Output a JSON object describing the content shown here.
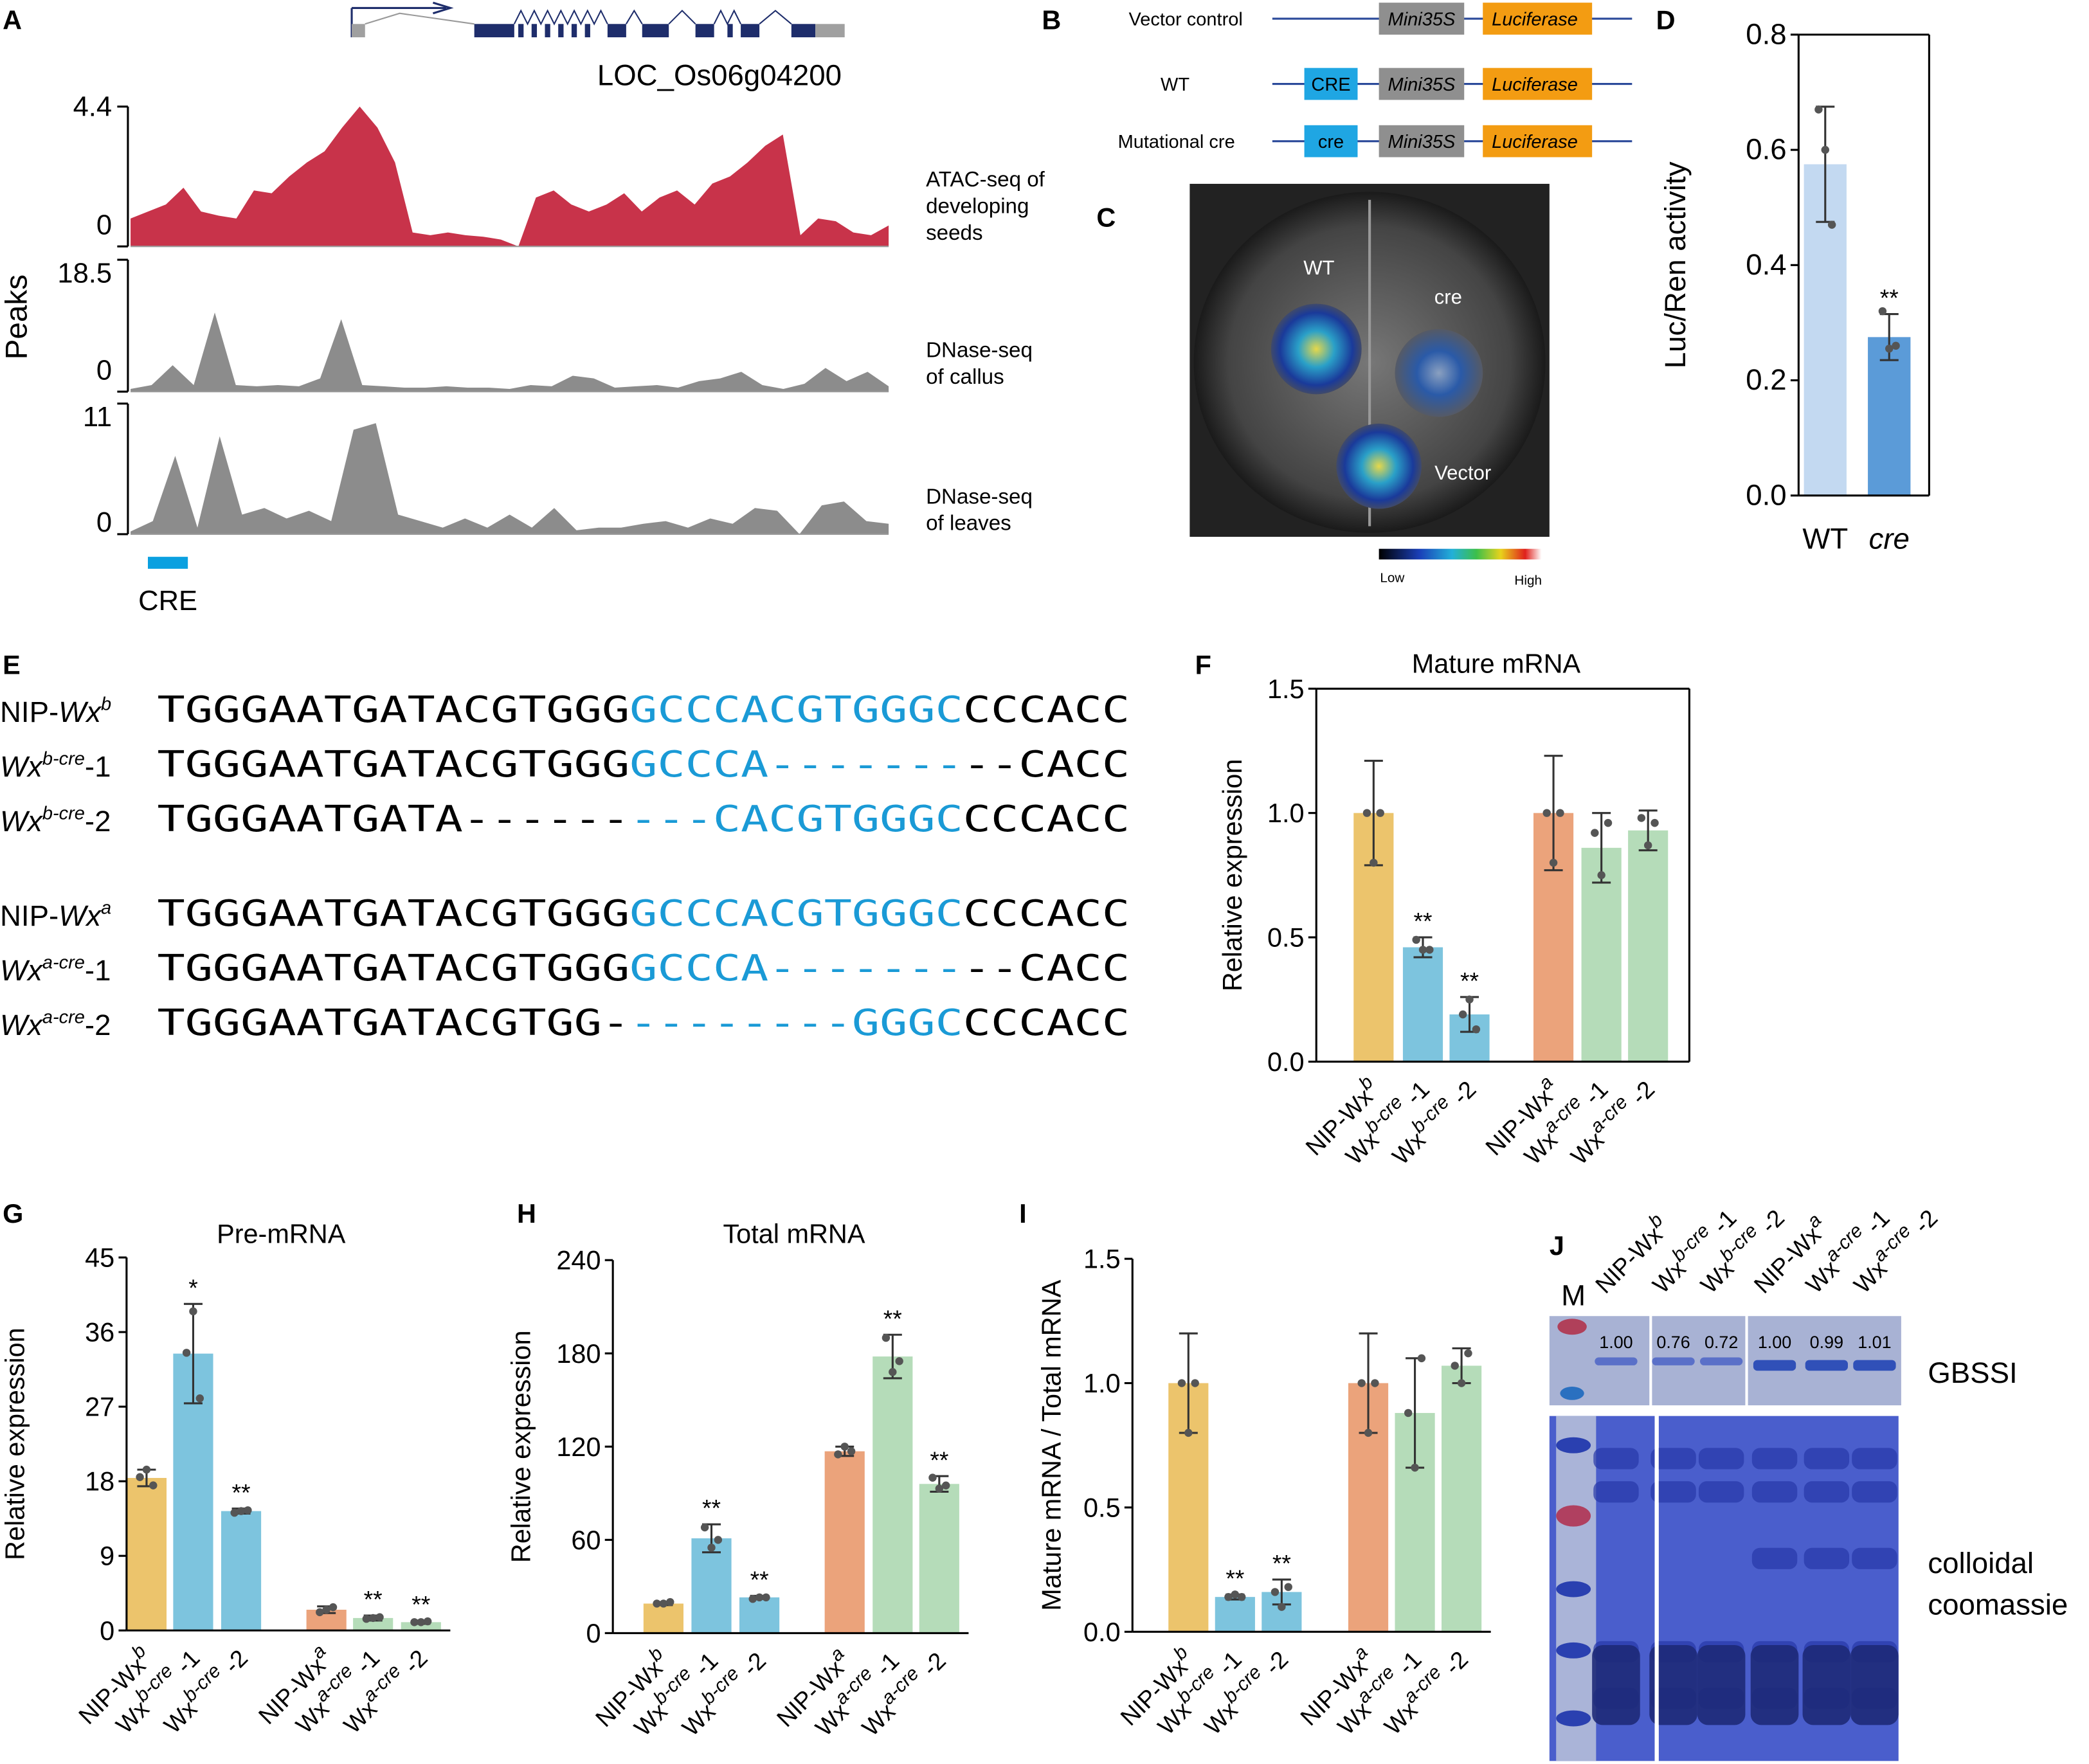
{
  "panels": {
    "A": "A",
    "B": "B",
    "C": "C",
    "D": "D",
    "E": "E",
    "F": "F",
    "G": "G",
    "H": "H",
    "I": "I",
    "J": "J"
  },
  "panelA": {
    "gene": "LOC_Os06g04200",
    "ylabel": "Peaks",
    "cre_label": "CRE",
    "cre_color": "#0aa0e0",
    "tracks": [
      {
        "name1": "ATAC-seq of",
        "name2": "developing",
        "name3": "seeds",
        "max": "4.4",
        "min": "0",
        "color": "#c8334a",
        "profile": [
          0.2,
          0.25,
          0.3,
          0.42,
          0.25,
          0.22,
          0.2,
          0.4,
          0.38,
          0.5,
          0.6,
          0.68,
          0.85,
          1.0,
          0.85,
          0.6,
          0.1,
          0.08,
          0.1,
          0.08,
          0.07,
          0.05,
          0.0,
          0.35,
          0.4,
          0.3,
          0.25,
          0.3,
          0.38,
          0.25,
          0.35,
          0.4,
          0.3,
          0.45,
          0.5,
          0.6,
          0.72,
          0.8,
          0.08,
          0.2,
          0.18,
          0.1,
          0.08,
          0.15
        ]
      },
      {
        "name1": "DNase-seq",
        "name2": "of callus",
        "name3": "",
        "max": "18.5",
        "min": "0",
        "color": "#8c8c8c",
        "profile": [
          0.02,
          0.05,
          0.2,
          0.05,
          0.6,
          0.05,
          0.04,
          0.05,
          0.04,
          0.1,
          0.55,
          0.05,
          0.04,
          0.03,
          0.03,
          0.04,
          0.03,
          0.03,
          0.02,
          0.05,
          0.04,
          0.12,
          0.1,
          0.03,
          0.04,
          0.05,
          0.03,
          0.08,
          0.1,
          0.15,
          0.05,
          0.02,
          0.06,
          0.18,
          0.08,
          0.15,
          0.04
        ]
      },
      {
        "name1": "DNase-seq",
        "name2": "of leaves",
        "name3": "",
        "max": "11",
        "min": "0",
        "color": "#8c8c8c",
        "profile": [
          0.02,
          0.1,
          0.6,
          0.05,
          0.75,
          0.15,
          0.2,
          0.12,
          0.18,
          0.1,
          0.8,
          0.85,
          0.15,
          0.1,
          0.05,
          0.12,
          0.05,
          0.15,
          0.05,
          0.2,
          0.03,
          0.05,
          0.05,
          0.08,
          0.1,
          0.05,
          0.12,
          0.08,
          0.2,
          0.18,
          0.0,
          0.22,
          0.25,
          0.1,
          0.08
        ]
      }
    ]
  },
  "panelB": {
    "rows": [
      {
        "label": "Vector control",
        "cre": ""
      },
      {
        "label": "WT",
        "cre": "CRE"
      },
      {
        "label": "Mutational cre",
        "cre": "cre"
      }
    ],
    "promoter": "Mini35S",
    "reporter": "Luciferase",
    "colors": {
      "cre": "#1fa6e3",
      "promoter": "#8f8f8f",
      "reporter": "#f39c12",
      "line": "#2b4a9a"
    }
  },
  "panelC": {
    "labels": [
      "WT",
      "cre",
      "Vector"
    ],
    "scale_low": "Low",
    "scale_high": "High"
  },
  "panelE": {
    "rows": [
      {
        "base": "NIP-",
        "gene": "Wx",
        "sup": "b",
        "suffix": "",
        "seq": [
          "TGGGAATGATACGTGGG",
          "GCCCACGTGGGC",
          "CCCACC"
        ]
      },
      {
        "base": "",
        "gene": "Wx",
        "sup": "b-cre",
        "suffix": "-1",
        "seq": [
          "TGGGAATGATACGTGGG",
          "GCCCA-------",
          "--CACC"
        ]
      },
      {
        "base": "",
        "gene": "Wx",
        "sup": "b-cre",
        "suffix": "-2",
        "seq": [
          "TGGGAATGATA------",
          "---CACGTGGGC",
          "CCCACC"
        ]
      },
      {
        "base": "NIP-",
        "gene": "Wx",
        "sup": "a",
        "suffix": "",
        "seq": [
          "TGGGAATGATACGTGGG",
          "GCCCACGTGGGC",
          "CCCACC"
        ]
      },
      {
        "base": "",
        "gene": "Wx",
        "sup": "a-cre",
        "suffix": "-1",
        "seq": [
          "TGGGAATGATACGTGGG",
          "GCCCA-------",
          "--CACC"
        ]
      },
      {
        "base": "",
        "gene": "Wx",
        "sup": "a-cre",
        "suffix": "-2",
        "seq": [
          "TGGGAATGATACGTGG-",
          "--------GGGC",
          "CCCACC"
        ]
      }
    ],
    "highlight_color": "#1a9ad6"
  },
  "xlabels": [
    {
      "base": "NIP-Wx",
      "sup": "b",
      "suffix": ""
    },
    {
      "base": "Wx",
      "sup": "b-cre",
      "suffix": " -1"
    },
    {
      "base": "Wx",
      "sup": "b-cre",
      "suffix": " -2"
    },
    {
      "base": "NIP-Wx",
      "sup": "a",
      "suffix": ""
    },
    {
      "base": "Wx",
      "sup": "a-cre",
      "suffix": " -1"
    },
    {
      "base": "Wx",
      "sup": "a-cre",
      "suffix": " -2"
    }
  ],
  "chart_data": [
    {
      "id": "D",
      "type": "bar",
      "title": "",
      "ylabel": "Luc/Ren activity",
      "ylim": [
        0,
        0.8
      ],
      "ticks": [
        "0.0",
        "0.2",
        "0.4",
        "0.6",
        "0.8"
      ],
      "categories": [
        "WT",
        "cre"
      ],
      "values": [
        0.575,
        0.275
      ],
      "errors": [
        0.1,
        0.04
      ],
      "points": [
        [
          0.67,
          0.6,
          0.47
        ],
        [
          0.32,
          0.255,
          0.26
        ]
      ],
      "sig": [
        "",
        "**"
      ],
      "colors": [
        "#c3d9f1",
        "#5b9bd8"
      ]
    },
    {
      "id": "F",
      "type": "bar",
      "title": "Mature mRNA",
      "ylabel": "Relative expression",
      "ylim": [
        0,
        1.5
      ],
      "ticks": [
        "0.0",
        "0.5",
        "1.0",
        "1.5"
      ],
      "categories": [
        "NIP-Wxb",
        "Wxb-cre-1",
        "Wxb-cre-2",
        "NIP-Wxa",
        "Wxa-cre-1",
        "Wxa-cre-2"
      ],
      "values": [
        1.0,
        0.46,
        0.19,
        1.0,
        0.86,
        0.93
      ],
      "errors": [
        0.21,
        0.04,
        0.07,
        0.23,
        0.14,
        0.08
      ],
      "points": [
        [
          1.0,
          0.8,
          1.0
        ],
        [
          0.49,
          0.45,
          0.45
        ],
        [
          0.19,
          0.25,
          0.13
        ],
        [
          1.0,
          0.8,
          1.0
        ],
        [
          0.92,
          0.75,
          0.96
        ],
        [
          0.98,
          0.87,
          0.96
        ]
      ],
      "sig": [
        "",
        "**",
        "**",
        "",
        "",
        ""
      ]
    },
    {
      "id": "G",
      "type": "bar",
      "title": "Pre-mRNA",
      "ylabel": "Relative expression",
      "ylim": [
        0,
        45
      ],
      "ticks": [
        "0",
        "9",
        "18",
        "27",
        "36",
        "45"
      ],
      "categories": [
        "NIP-Wxb",
        "Wxb-cre-1",
        "Wxb-cre-2",
        "NIP-Wxa",
        "Wxa-cre-1",
        "Wxa-cre-2"
      ],
      "values": [
        18.4,
        33.4,
        14.4,
        2.5,
        1.5,
        1.0
      ],
      "errors": [
        1.0,
        6.0,
        0.3,
        0.4,
        0.3,
        0.2
      ],
      "points": [
        [
          18.5,
          19.4,
          17.5
        ],
        [
          33.5,
          38.5,
          28
        ],
        [
          14.2,
          14.4,
          14.5
        ],
        [
          2.2,
          2.5,
          2.8
        ],
        [
          1.4,
          1.5,
          1.6
        ],
        [
          1.0,
          1.0,
          1.1
        ]
      ],
      "sig": [
        "",
        "*",
        "**",
        "",
        "**",
        "**"
      ]
    },
    {
      "id": "H",
      "type": "bar",
      "title": "Total mRNA",
      "ylabel": "Relative expression",
      "ylim": [
        0,
        240
      ],
      "ticks": [
        "0",
        "60",
        "120",
        "180",
        "240"
      ],
      "categories": [
        "NIP-Wxb",
        "Wxb-cre-1",
        "Wxb-cre-2",
        "NIP-Wxa",
        "Wxa-cre-1",
        "Wxa-cre-2"
      ],
      "values": [
        19,
        61,
        23,
        117,
        178,
        96
      ],
      "errors": [
        1,
        9,
        1,
        3,
        14,
        5
      ],
      "points": [
        [
          19,
          19,
          20
        ],
        [
          68,
          55,
          60
        ],
        [
          22,
          23,
          23
        ],
        [
          115,
          120,
          117
        ],
        [
          190,
          168,
          175
        ],
        [
          100,
          93,
          95
        ]
      ],
      "sig": [
        "",
        "**",
        "**",
        "",
        "**",
        "**"
      ]
    },
    {
      "id": "I",
      "type": "bar",
      "title": "",
      "ylabel": "Mature mRNA / Total mRNA",
      "ylim": [
        0,
        1.5
      ],
      "ticks": [
        "0.0",
        "0.5",
        "1.0",
        "1.5"
      ],
      "categories": [
        "NIP-Wxb",
        "Wxb-cre-1",
        "Wxb-cre-2",
        "NIP-Wxa",
        "Wxa-cre-1",
        "Wxa-cre-2"
      ],
      "values": [
        1.0,
        0.14,
        0.16,
        1.0,
        0.88,
        1.07
      ],
      "errors": [
        0.2,
        0.01,
        0.05,
        0.2,
        0.22,
        0.07
      ],
      "points": [
        [
          1.0,
          0.8,
          1.0
        ],
        [
          0.14,
          0.15,
          0.14
        ],
        [
          0.16,
          0.1,
          0.18
        ],
        [
          1.0,
          0.8,
          1.0
        ],
        [
          0.88,
          0.66,
          1.1
        ],
        [
          1.07,
          1.0,
          1.12
        ]
      ],
      "sig": [
        "",
        "**",
        "**",
        "",
        "",
        ""
      ]
    }
  ],
  "bar_colors": [
    "#ecc46c",
    "#7dc4de",
    "#7dc4de",
    "#eba37b",
    "#b5dcb9",
    "#b5dcb9"
  ],
  "panelJ": {
    "marker": "M",
    "band_values": [
      "1.00",
      "0.76",
      "0.72",
      "1.00",
      "0.99",
      "1.01"
    ],
    "blot_label": "GBSSI",
    "gel_label1": "colloidal",
    "gel_label2": "coomassie"
  }
}
